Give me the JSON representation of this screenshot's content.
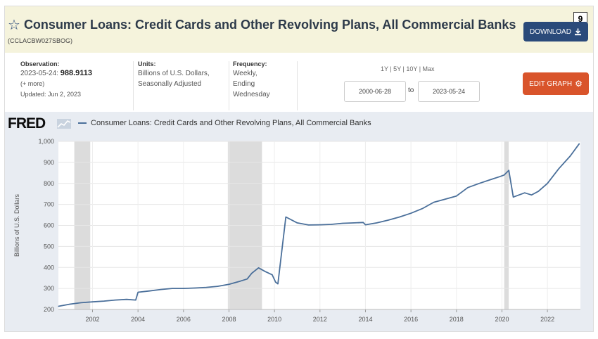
{
  "header": {
    "title": "Consumer Loans: Credit Cards and Other Revolving Plans, All Commercial Banks",
    "series_id": "(CCLACBW027SBOG)",
    "badge": "9",
    "download_label": "DOWNLOAD"
  },
  "meta": {
    "observation_label": "Observation:",
    "observation_date": "2023-05-24:",
    "observation_value": "988.9113",
    "more": "(+ more)",
    "updated": "Updated: Jun 2, 2023",
    "units_label": "Units:",
    "units_line1": "Billions of U.S. Dollars,",
    "units_line2": "Seasonally Adjusted",
    "frequency_label": "Frequency:",
    "frequency_line1": "Weekly,",
    "frequency_line2": "Ending",
    "frequency_line3": "Wednesday",
    "ranges": "1Y | 5Y | 10Y | Max",
    "start_date": "2000-06-28",
    "to_label": "to",
    "end_date": "2023-05-24",
    "edit_label": "EDIT GRAPH"
  },
  "brand": {
    "logo": "FRED"
  },
  "colors": {
    "line": "#4a6f9a",
    "recession": "#dcdcdc",
    "header_bg": "#f5f3dc",
    "download": "#2a4a7a",
    "edit": "#d9542b"
  },
  "chart_data": {
    "type": "line",
    "legend": "Consumer Loans: Credit Cards and Other Revolving Plans, All Commercial Banks",
    "ylabel": "Billions of U.S. Dollars",
    "xlabel": "",
    "xlim": [
      2000.5,
      2023.45
    ],
    "ylim": [
      200,
      1000
    ],
    "yticks": [
      "200",
      "300",
      "400",
      "500",
      "600",
      "700",
      "800",
      "900",
      "1,000"
    ],
    "yticks_values": [
      200,
      300,
      400,
      500,
      600,
      700,
      800,
      900,
      1000
    ],
    "xticks": [
      "2002",
      "2004",
      "2006",
      "2008",
      "2010",
      "2012",
      "2014",
      "2016",
      "2018",
      "2020",
      "2022"
    ],
    "xticks_values": [
      2002,
      2004,
      2006,
      2008,
      2010,
      2012,
      2014,
      2016,
      2018,
      2020,
      2022
    ],
    "recessions": [
      [
        2001.2,
        2001.9
      ],
      [
        2007.95,
        2009.45
      ],
      [
        2020.1,
        2020.3
      ]
    ],
    "series": [
      {
        "name": "CCLACBW027SBOG",
        "x": [
          2000.5,
          2001.0,
          2001.5,
          2002.0,
          2002.5,
          2003.0,
          2003.5,
          2003.9,
          2004.0,
          2004.5,
          2005.0,
          2005.5,
          2006.0,
          2006.5,
          2007.0,
          2007.5,
          2008.0,
          2008.5,
          2008.8,
          2009.0,
          2009.3,
          2009.6,
          2009.9,
          2010.05,
          2010.15,
          2010.5,
          2011.0,
          2011.5,
          2012.0,
          2012.5,
          2013.0,
          2013.5,
          2013.9,
          2014.0,
          2014.5,
          2015.0,
          2015.5,
          2016.0,
          2016.5,
          2017.0,
          2017.5,
          2018.0,
          2018.5,
          2019.0,
          2019.5,
          2019.9,
          2020.1,
          2020.3,
          2020.5,
          2021.0,
          2021.3,
          2021.6,
          2022.0,
          2022.5,
          2023.0,
          2023.4
        ],
        "values": [
          215,
          225,
          232,
          236,
          240,
          245,
          248,
          245,
          282,
          288,
          295,
          300,
          300,
          302,
          305,
          310,
          320,
          335,
          345,
          372,
          398,
          380,
          365,
          330,
          322,
          640,
          612,
          602,
          603,
          605,
          610,
          612,
          614,
          603,
          612,
          625,
          640,
          658,
          680,
          710,
          725,
          740,
          780,
          800,
          818,
          832,
          840,
          862,
          735,
          755,
          745,
          762,
          800,
          870,
          930,
          989
        ]
      }
    ]
  }
}
